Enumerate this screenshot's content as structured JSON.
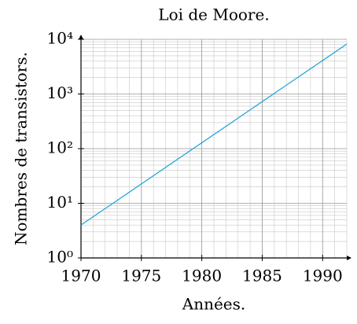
{
  "chart_data": {
    "type": "line",
    "title": "Loi de Moore.",
    "xlabel": "Années.",
    "ylabel": "Nombres de transistors.",
    "x": [
      1970,
      1992
    ],
    "series": [
      {
        "name": "Loi de Moore",
        "color": "#1ba1d9",
        "values": [
          4,
          8192
        ]
      }
    ],
    "xlim": [
      1970,
      1992
    ],
    "xticks": [
      1970,
      1975,
      1980,
      1985,
      1990
    ],
    "ylim": [
      1,
      10000
    ],
    "yscale": "log",
    "yticks": [
      {
        "value": 1,
        "label": "10⁰"
      },
      {
        "value": 10,
        "label": "10¹"
      },
      {
        "value": 100,
        "label": "10²"
      },
      {
        "value": 1000,
        "label": "10³"
      },
      {
        "value": 10000,
        "label": "10⁴"
      }
    ],
    "grid": true,
    "minor_grid": true,
    "legend": false
  }
}
